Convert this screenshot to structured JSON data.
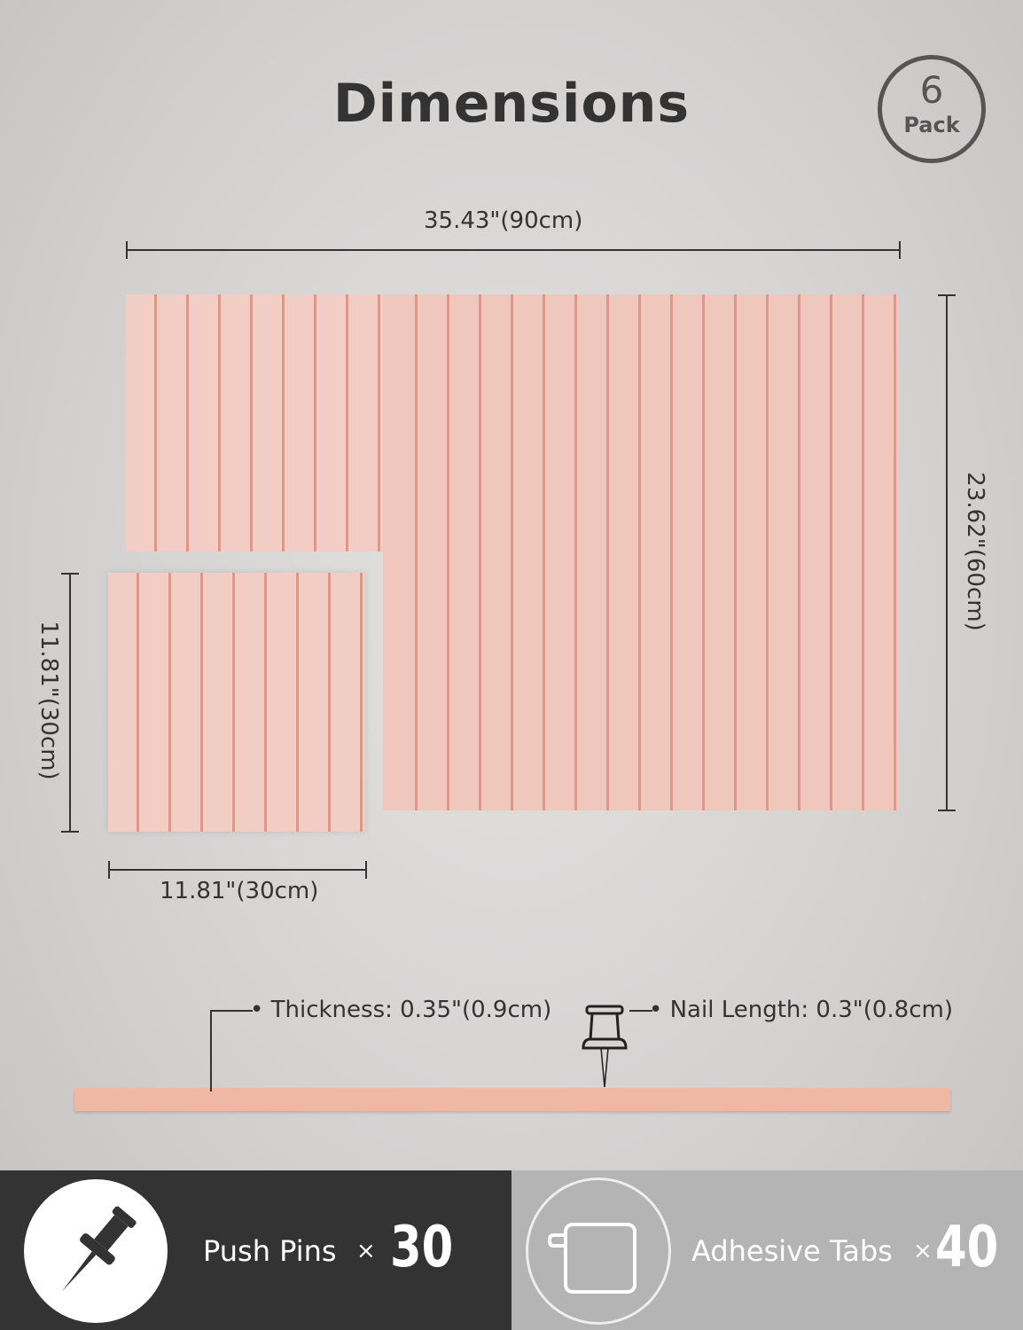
{
  "title": "Dimensions",
  "badge": {
    "number": "6",
    "label": "Pack"
  },
  "dimensions": {
    "width_large": "35.43\"(90cm)",
    "height_large": "23.62\"(60cm)",
    "height_small": "11.81\"(30cm)",
    "width_small": "11.81\"(30cm)",
    "thickness": "Thickness: 0.35\"(0.9cm)",
    "nail_length": "Nail Length: 0.3\"(0.8cm)"
  },
  "features": [
    {
      "icon": "push-pin-icon",
      "label": "Push Pins",
      "times": "×",
      "count": "30"
    },
    {
      "icon": "adhesive-tab-icon",
      "label": "Adhesive Tabs",
      "times": "×",
      "count": "40"
    }
  ],
  "colors": {
    "panel": "#f0c7bd",
    "groove": "#d99a8b",
    "dark_bar": "#333333",
    "light_bar": "#b4b4b4"
  }
}
